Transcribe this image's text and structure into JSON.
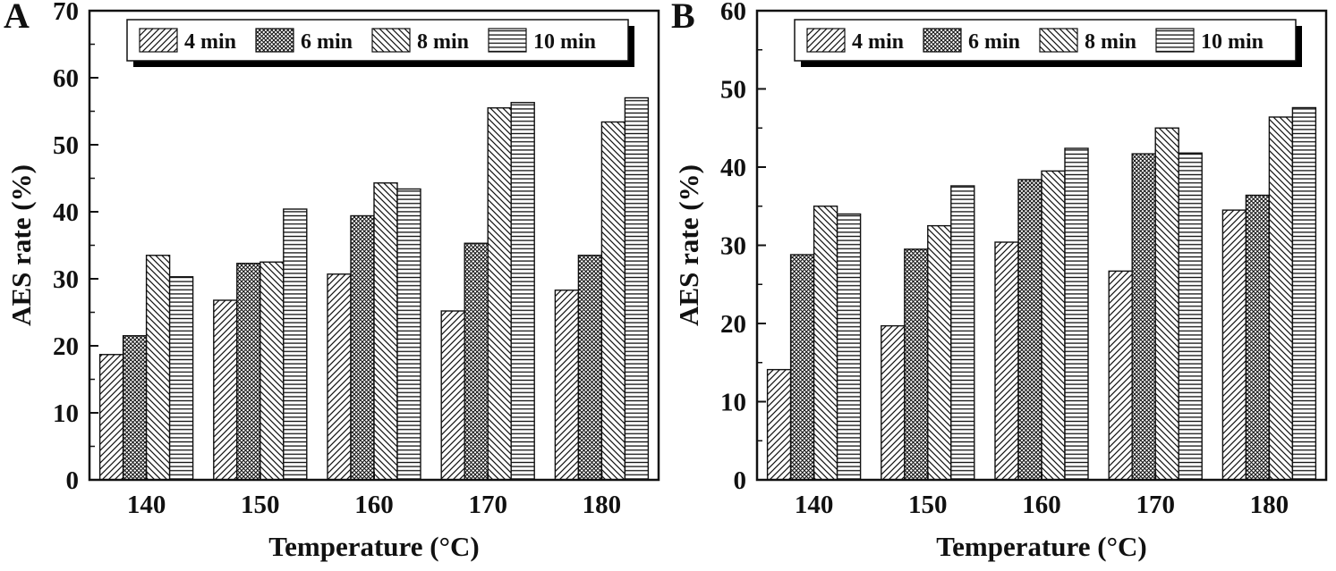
{
  "figure": {
    "background": "#ffffff",
    "ink_color": "#111111"
  },
  "chart_data": [
    {
      "type": "bar",
      "panel_label": "A",
      "xlabel": "Temperature (°C)",
      "ylabel": "AES rate (%)",
      "ylim": [
        0,
        70
      ],
      "ytick_step": 10,
      "ytick_minor_step": 5,
      "grid": false,
      "legend_position": "top-inside",
      "categories": [
        "140",
        "150",
        "160",
        "170",
        "180"
      ],
      "series": [
        {
          "name": "4 min",
          "pattern": "diagonal-forward",
          "values": [
            18.7,
            26.8,
            30.7,
            25.2,
            28.3
          ]
        },
        {
          "name": "6 min",
          "pattern": "crosshatch",
          "values": [
            21.5,
            32.3,
            39.4,
            35.3,
            33.5
          ]
        },
        {
          "name": "8 min",
          "pattern": "diagonal-back",
          "values": [
            33.5,
            32.5,
            44.3,
            55.5,
            53.4
          ]
        },
        {
          "name": "10 min",
          "pattern": "horizontal",
          "values": [
            30.3,
            40.4,
            43.4,
            56.3,
            57.0
          ]
        }
      ]
    },
    {
      "type": "bar",
      "panel_label": "B",
      "xlabel": "Temperature (°C)",
      "ylabel": "AES rate (%)",
      "ylim": [
        0,
        60
      ],
      "ytick_step": 10,
      "ytick_minor_step": 5,
      "grid": false,
      "legend_position": "top-inside",
      "categories": [
        "140",
        "150",
        "160",
        "170",
        "180"
      ],
      "series": [
        {
          "name": "4 min",
          "pattern": "diagonal-forward",
          "values": [
            14.1,
            19.7,
            30.4,
            26.7,
            34.5
          ]
        },
        {
          "name": "6 min",
          "pattern": "crosshatch",
          "values": [
            28.8,
            29.5,
            38.4,
            41.7,
            36.4
          ]
        },
        {
          "name": "8 min",
          "pattern": "diagonal-back",
          "values": [
            35.0,
            32.5,
            39.5,
            45.0,
            46.4
          ]
        },
        {
          "name": "10 min",
          "pattern": "horizontal",
          "values": [
            34.0,
            37.6,
            42.4,
            41.8,
            47.6
          ]
        }
      ]
    }
  ]
}
